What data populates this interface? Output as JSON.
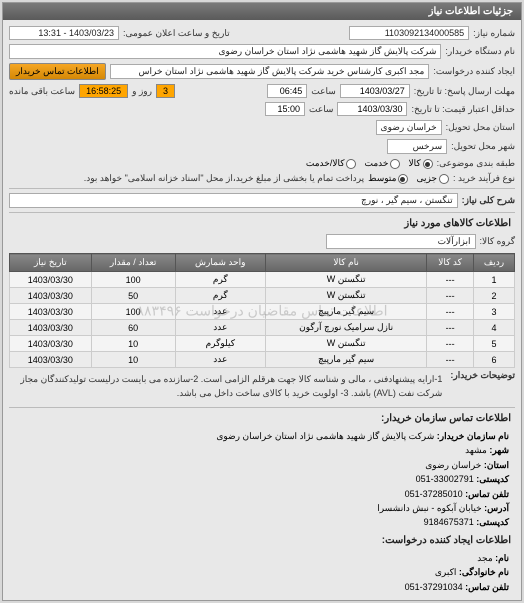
{
  "panels": {
    "need_info_title": "جزئیات اطلاعات نیاز"
  },
  "header": {
    "number_label": "شماره نیاز:",
    "number_value": "1103092134000585",
    "public_date_label": "تاریخ و ساعت اعلان عمومی:",
    "public_date_value": "1403/03/23 - 13:31",
    "buyer_org_label": "نام دستگاه خریدار:",
    "buyer_org_value": "شرکت پالایش گاز شهید هاشمی نژاد   استان خراسان رضوی",
    "requester_label": "ایجاد کننده درخواست:",
    "requester_value": "مجد اکبری کارشناس خرید شرکت پالایش گاز شهید هاشمی نژاد   استان خراس",
    "contact_btn": "اطلاعات تماس خریدار",
    "deadline_reply_label": "مهلت ارسال پاسخ: تا تاریخ:",
    "deadline_reply_date": "1403/03/27",
    "deadline_reply_time_label": "ساعت",
    "deadline_reply_time": "06:45",
    "days_label": "روز و",
    "days_value": "3",
    "remaining_label": "ساعت باقی مانده",
    "remaining_time": "16:58:25",
    "validity_label": "حداقل اعتبار قیمت: تا تاریخ:",
    "validity_date": "1403/03/30",
    "validity_time_label": "ساعت",
    "validity_time": "15:00",
    "delivery_province_label": "استان محل تحویل:",
    "delivery_province_value": "خراسان رضوی",
    "delivery_city_label": "شهر محل تحویل:",
    "delivery_city_value": "سرخس",
    "category_label": "طبقه بندی موضوعی:",
    "cat_goods": "کالا",
    "cat_service": "خدمت",
    "cat_goods_service": "کالا/خدمت",
    "purchase_type_label": "نوع فرآیند خرید :",
    "pt_small": "جزیی",
    "pt_medium": "متوسط",
    "pt_note": "پرداخت تمام یا بخشی از مبلغ خرید،از محل \"اسناد خزانه اسلامی\" خواهد بود.",
    "need_title_label": "شرح کلی نیاز:",
    "need_title_value": "تنگستن ، سیم گیر ، نورچ"
  },
  "goods": {
    "section_title": "اطلاعات کالاهای مورد نیاز",
    "group_label": "گروه کالا:",
    "group_value": "ابزارآلات",
    "watermark": "اطلاعات تماس مقاضیان درخواست  ۸۸۳۴۹۶",
    "columns": [
      "ردیف",
      "کد کالا",
      "نام کالا",
      "واحد شمارش",
      "تعداد / مقدار",
      "تاریخ نیاز"
    ],
    "rows": [
      [
        "1",
        "---",
        "تنگستن W",
        "گرم",
        "100",
        "1403/03/30"
      ],
      [
        "2",
        "---",
        "تنگستن W",
        "گرم",
        "50",
        "1403/03/30"
      ],
      [
        "3",
        "---",
        "سیم گیر مارپیچ",
        "عدد",
        "100",
        "1403/03/30"
      ],
      [
        "4",
        "---",
        "نازل سرامیک نورچ آرگون",
        "عدد",
        "60",
        "1403/03/30"
      ],
      [
        "5",
        "---",
        "تنگستن W",
        "کیلوگرم",
        "10",
        "1403/03/30"
      ],
      [
        "6",
        "---",
        "سیم گیر مارپیچ",
        "عدد",
        "10",
        "1403/03/30"
      ]
    ],
    "buyer_notes_label": "توضیحات خریدار:",
    "buyer_notes": "1-ارایه پیشنهادفنی ، مالی و شناسه کالا جهت هرقلم الزامی است. 2-سازنده می بایست درلیست تولیدکنندگان مجاز شرکت نفت (AVL) باشد. 3- اولویت خرید با کالای ساخت داخل می باشد."
  },
  "contact": {
    "section_title": "اطلاعات تماس سازمان خریدار:",
    "org_label": "نام سازمان خریدار:",
    "org_value": "شرکت پالایش گاز شهید هاشمی نژاد استان خراسان رضوی",
    "city_label": "شهر:",
    "city_value": "مشهد",
    "province_label": "استان:",
    "province_value": "خراسان رضوی",
    "postal_label": "کدپستی:",
    "postal_value": "33002791-051",
    "phone_label": "تلفن تماس:",
    "phone_value": "37285010-051",
    "address_label": "آدرس:",
    "address_value": "خیابان آبکوه - نبش دانشسرا",
    "zip_label": "کدپستی:",
    "zip_value": "9184675371",
    "creator_section_title": "اطلاعات ایجاد کننده درخواست:",
    "name_label": "نام:",
    "name_value": "مجد",
    "lname_label": "نام خانوادگی:",
    "lname_value": "اکبری",
    "creator_phone_label": "تلفن تماس:",
    "creator_phone_value": "37291034-051"
  }
}
